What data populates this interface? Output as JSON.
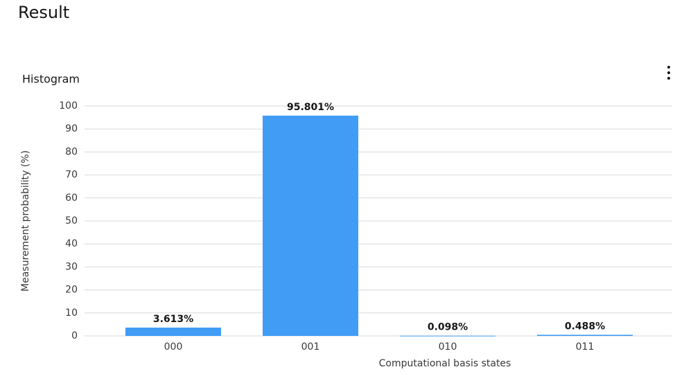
{
  "heading": "Result",
  "chart_data": {
    "type": "bar",
    "title": "Histogram",
    "categories": [
      "000",
      "001",
      "010",
      "011"
    ],
    "values": [
      3.613,
      95.801,
      0.098,
      0.488
    ],
    "value_labels": [
      "3.613%",
      "95.801%",
      "0.098%",
      "0.488%"
    ],
    "color": "#409cf5",
    "ylim": [
      0,
      100
    ],
    "yticks": [
      0,
      10,
      20,
      30,
      40,
      50,
      60,
      70,
      80,
      90,
      100
    ],
    "ylabel": "Measurement probability (%)",
    "xlabel": "Computational basis states",
    "grid": true
  }
}
